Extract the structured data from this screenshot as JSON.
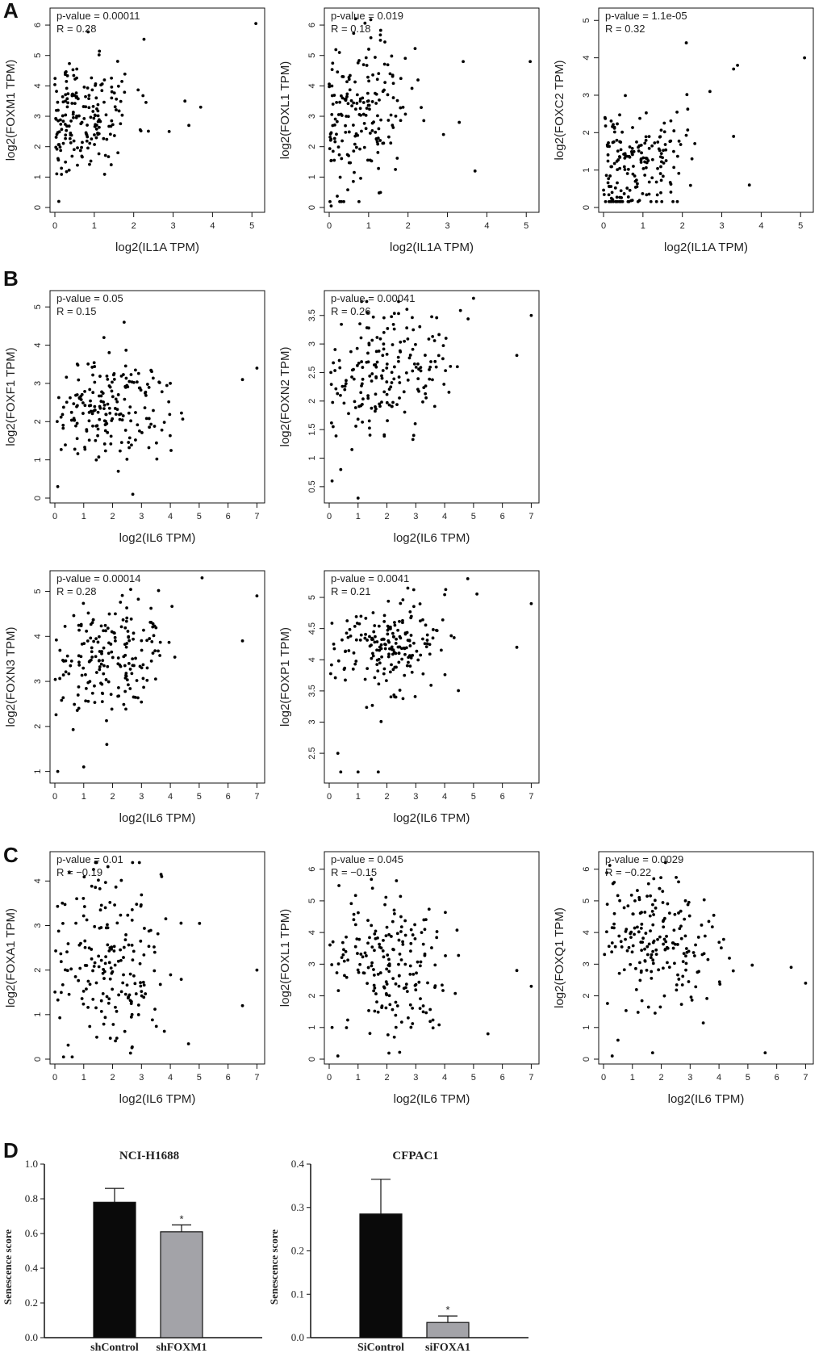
{
  "panel_labels": {
    "a": "A",
    "b": "B",
    "c": "C",
    "d": "D"
  },
  "colors": {
    "ink": "#111111",
    "point": "#000000",
    "bar_dark": "#0a0a0a",
    "bar_gray": "#a3a3a8"
  },
  "chart_data": [
    {
      "id": "A1",
      "type": "scatter",
      "xlabel": "log2(IL1A TPM)",
      "ylabel": "log2(FOXM1 TPM)",
      "stat_p": "p-value = 0.00011",
      "stat_r": "R = 0.28",
      "xlim": [
        0,
        5.2
      ],
      "ylim": [
        0,
        6.4
      ],
      "xticks": [
        0,
        1,
        2,
        3,
        4,
        5
      ],
      "yticks": [
        0,
        1,
        2,
        3,
        4,
        5,
        6
      ],
      "n": 190,
      "seed": 11,
      "cluster": {
        "x_center": 0.7,
        "x_spread": 0.9,
        "y_center": 3.0,
        "y_spread": 1.0,
        "slope": 0.35
      },
      "points": [
        [
          5.1,
          6.05
        ],
        [
          0.1,
          0.2
        ],
        [
          3.3,
          3.5
        ],
        [
          3.7,
          3.3
        ],
        [
          3.4,
          2.7
        ],
        [
          2.9,
          2.5
        ],
        [
          1.6,
          1.8
        ]
      ]
    },
    {
      "id": "A2",
      "type": "scatter",
      "xlabel": "log2(IL1A TPM)",
      "ylabel": "log2(FOXL1 TPM)",
      "stat_p": "p-value = 0.019",
      "stat_r": "R = 0.18",
      "xlim": [
        0,
        5.2
      ],
      "ylim": [
        0,
        6.4
      ],
      "xticks": [
        0,
        1,
        2,
        3,
        4,
        5
      ],
      "yticks": [
        0,
        1,
        2,
        3,
        4,
        5,
        6
      ],
      "n": 190,
      "seed": 23,
      "cluster": {
        "x_center": 0.7,
        "x_spread": 0.9,
        "y_center": 3.0,
        "y_spread": 1.2,
        "slope": 0.3
      },
      "points": [
        [
          5.1,
          4.8
        ],
        [
          3.4,
          4.8
        ],
        [
          3.7,
          1.2
        ],
        [
          2.9,
          2.4
        ],
        [
          3.3,
          2.8
        ],
        [
          0.05,
          0.05
        ],
        [
          1.3,
          5.5
        ]
      ]
    },
    {
      "id": "A3",
      "type": "scatter",
      "xlabel": "log2(IL1A TPM)",
      "ylabel": "log2(FOXC2 TPM)",
      "stat_p": "p-value = 1.1e-05",
      "stat_r": "R = 0.32",
      "xlim": [
        0,
        5.2
      ],
      "ylim": [
        0,
        5.2
      ],
      "xticks": [
        0,
        1,
        2,
        3,
        4,
        5
      ],
      "yticks": [
        0,
        1,
        2,
        3,
        4,
        5
      ],
      "n": 190,
      "seed": 37,
      "cluster": {
        "x_center": 0.7,
        "x_spread": 0.9,
        "y_center": 1.1,
        "y_spread": 0.8,
        "slope": 0.35
      },
      "points": [
        [
          5.1,
          4.0
        ],
        [
          3.4,
          3.8
        ],
        [
          3.3,
          3.7
        ],
        [
          2.1,
          4.4
        ],
        [
          3.7,
          0.6
        ],
        [
          3.3,
          1.9
        ],
        [
          2.7,
          3.1
        ]
      ]
    },
    {
      "id": "B1",
      "type": "scatter",
      "xlabel": "log2(IL6 TPM)",
      "ylabel": "log2(FOXF1 TPM)",
      "stat_p": "p-value = 0.05",
      "stat_r": "R = 0.15",
      "xlim": [
        0,
        7.1
      ],
      "ylim": [
        0,
        5.3
      ],
      "xticks": [
        0,
        1,
        2,
        3,
        4,
        5,
        6,
        7
      ],
      "yticks": [
        0,
        1,
        2,
        3,
        4,
        5
      ],
      "n": 190,
      "seed": 51,
      "cluster": {
        "x_center": 1.9,
        "x_spread": 1.4,
        "y_center": 2.3,
        "y_spread": 0.7,
        "slope": 0.1
      },
      "points": [
        [
          7.0,
          3.4
        ],
        [
          6.5,
          3.1
        ],
        [
          2.7,
          0.1
        ],
        [
          0.1,
          0.3
        ],
        [
          2.4,
          4.6
        ],
        [
          1.7,
          4.2
        ]
      ]
    },
    {
      "id": "B2",
      "type": "scatter",
      "xlabel": "log2(IL6 TPM)",
      "ylabel": "log2(FOXN2 TPM)",
      "stat_p": "p-value = 0.00041",
      "stat_r": "R = 0.26",
      "xlim": [
        0,
        7.1
      ],
      "ylim": [
        0.3,
        3.85
      ],
      "xticks": [
        0,
        1,
        2,
        3,
        4,
        5,
        6,
        7
      ],
      "yticks": [
        0.5,
        1.0,
        1.5,
        2.0,
        2.5,
        3.0,
        3.5
      ],
      "n": 190,
      "seed": 67,
      "cluster": {
        "x_center": 1.9,
        "x_spread": 1.4,
        "y_center": 2.4,
        "y_spread": 0.55,
        "slope": 0.12
      },
      "points": [
        [
          7.0,
          3.5
        ],
        [
          6.5,
          2.8
        ],
        [
          1.0,
          0.3
        ],
        [
          0.1,
          0.6
        ],
        [
          0.4,
          0.8
        ],
        [
          5.0,
          3.8
        ]
      ]
    },
    {
      "id": "B3",
      "type": "scatter",
      "xlabel": "log2(IL6 TPM)",
      "ylabel": "log2(FOXN3 TPM)",
      "stat_p": "p-value = 0.00014",
      "stat_r": "R = 0.28",
      "xlim": [
        0,
        7.1
      ],
      "ylim": [
        0.85,
        5.35
      ],
      "xticks": [
        0,
        1,
        2,
        3,
        4,
        5,
        6,
        7
      ],
      "yticks": [
        1,
        2,
        3,
        4,
        5
      ],
      "n": 190,
      "seed": 79,
      "cluster": {
        "x_center": 1.9,
        "x_spread": 1.4,
        "y_center": 3.6,
        "y_spread": 0.6,
        "slope": 0.15
      },
      "points": [
        [
          7.0,
          4.9
        ],
        [
          6.5,
          3.9
        ],
        [
          0.1,
          1.0
        ],
        [
          1.0,
          1.1
        ],
        [
          5.1,
          5.3
        ],
        [
          1.8,
          1.6
        ]
      ]
    },
    {
      "id": "B4",
      "type": "scatter",
      "xlabel": "log2(IL6 TPM)",
      "ylabel": "log2(FOXP1 TPM)",
      "stat_p": "p-value = 0.0041",
      "stat_r": "R = 0.21",
      "xlim": [
        0,
        7.1
      ],
      "ylim": [
        2.1,
        5.35
      ],
      "xticks": [
        0,
        1,
        2,
        3,
        4,
        5,
        6,
        7
      ],
      "yticks": [
        2.5,
        3.0,
        3.5,
        4.0,
        4.5,
        5.0
      ],
      "n": 190,
      "seed": 97,
      "cluster": {
        "x_center": 1.9,
        "x_spread": 1.4,
        "y_center": 4.2,
        "y_spread": 0.4,
        "slope": 0.1
      },
      "points": [
        [
          7.0,
          4.9
        ],
        [
          6.5,
          4.2
        ],
        [
          0.3,
          2.5
        ],
        [
          0.4,
          2.2
        ],
        [
          1.0,
          2.2
        ],
        [
          1.7,
          2.2
        ],
        [
          4.8,
          5.3
        ]
      ]
    },
    {
      "id": "C1",
      "type": "scatter",
      "xlabel": "log2(IL6 TPM)",
      "ylabel": "log2(FOXA1 TPM)",
      "stat_p": "p-value = 0.01",
      "stat_r": "R = −0.19",
      "xlim": [
        0,
        7.1
      ],
      "ylim": [
        0,
        4.55
      ],
      "xticks": [
        0,
        1,
        2,
        3,
        4,
        5,
        6,
        7
      ],
      "yticks": [
        0,
        1,
        2,
        3,
        4
      ],
      "n": 190,
      "seed": 113,
      "cluster": {
        "x_center": 2.0,
        "x_spread": 1.4,
        "y_center": 2.2,
        "y_spread": 1.0,
        "slope": -0.12
      },
      "points": [
        [
          7.0,
          2.0
        ],
        [
          6.5,
          1.2
        ],
        [
          0.3,
          0.05
        ],
        [
          0.6,
          0.05
        ],
        [
          3.7,
          4.1
        ],
        [
          0.5,
          4.2
        ]
      ]
    },
    {
      "id": "C2",
      "type": "scatter",
      "xlabel": "log2(IL6 TPM)",
      "ylabel": "log2(FOXL1 TPM)",
      "stat_p": "p-value = 0.045",
      "stat_r": "R = −0.15",
      "xlim": [
        0,
        7.1
      ],
      "ylim": [
        0,
        6.4
      ],
      "xticks": [
        0,
        1,
        2,
        3,
        4,
        5,
        6,
        7
      ],
      "yticks": [
        0,
        1,
        2,
        3,
        4,
        5,
        6
      ],
      "n": 190,
      "seed": 131,
      "cluster": {
        "x_center": 2.0,
        "x_spread": 1.4,
        "y_center": 3.0,
        "y_spread": 1.1,
        "slope": -0.15
      },
      "points": [
        [
          7.0,
          2.3
        ],
        [
          6.5,
          2.8
        ],
        [
          0.3,
          0.1
        ],
        [
          5.5,
          0.8
        ],
        [
          1.5,
          5.4
        ],
        [
          0.1,
          1.0
        ]
      ]
    },
    {
      "id": "C3",
      "type": "scatter",
      "xlabel": "log2(IL6 TPM)",
      "ylabel": "log2(FOXQ1 TPM)",
      "stat_p": "p-value = 0.0029",
      "stat_r": "R = −0.22",
      "xlim": [
        0,
        7.1
      ],
      "ylim": [
        0,
        6.4
      ],
      "xticks": [
        0,
        1,
        2,
        3,
        4,
        5,
        6,
        7
      ],
      "yticks": [
        0,
        1,
        2,
        3,
        4,
        5,
        6
      ],
      "n": 190,
      "seed": 151,
      "cluster": {
        "x_center": 1.8,
        "x_spread": 1.4,
        "y_center": 3.7,
        "y_spread": 0.9,
        "slope": -0.2
      },
      "points": [
        [
          7.0,
          2.4
        ],
        [
          6.5,
          2.9
        ],
        [
          0.3,
          0.1
        ],
        [
          0.5,
          0.6
        ],
        [
          5.6,
          0.2
        ],
        [
          2.6,
          5.6
        ],
        [
          1.7,
          0.2
        ]
      ]
    },
    {
      "id": "D1",
      "type": "bar",
      "title": "NCI-H1688",
      "ylabel": "Senescence score",
      "categories": [
        "shControl",
        "shFOXM1"
      ],
      "values": [
        0.78,
        0.61
      ],
      "errors": [
        0.08,
        0.04
      ],
      "significance": [
        "",
        "*"
      ],
      "ylim": [
        0,
        1.0
      ],
      "yticks": [
        "0.0",
        "0.2",
        "0.4",
        "0.6",
        "0.8",
        "1.0"
      ],
      "ytick_values": [
        0,
        0.2,
        0.4,
        0.6,
        0.8,
        1.0
      ]
    },
    {
      "id": "D2",
      "type": "bar",
      "title": "CFPAC1",
      "ylabel": "Senescence score",
      "categories": [
        "SiControl",
        "siFOXA1"
      ],
      "values": [
        0.285,
        0.035
      ],
      "errors": [
        0.08,
        0.015
      ],
      "significance": [
        "",
        "*"
      ],
      "ylim": [
        0,
        0.4
      ],
      "yticks": [
        "0.0",
        "0.1",
        "0.2",
        "0.3",
        "0.4"
      ],
      "ytick_values": [
        0,
        0.1,
        0.2,
        0.3,
        0.4
      ]
    }
  ]
}
